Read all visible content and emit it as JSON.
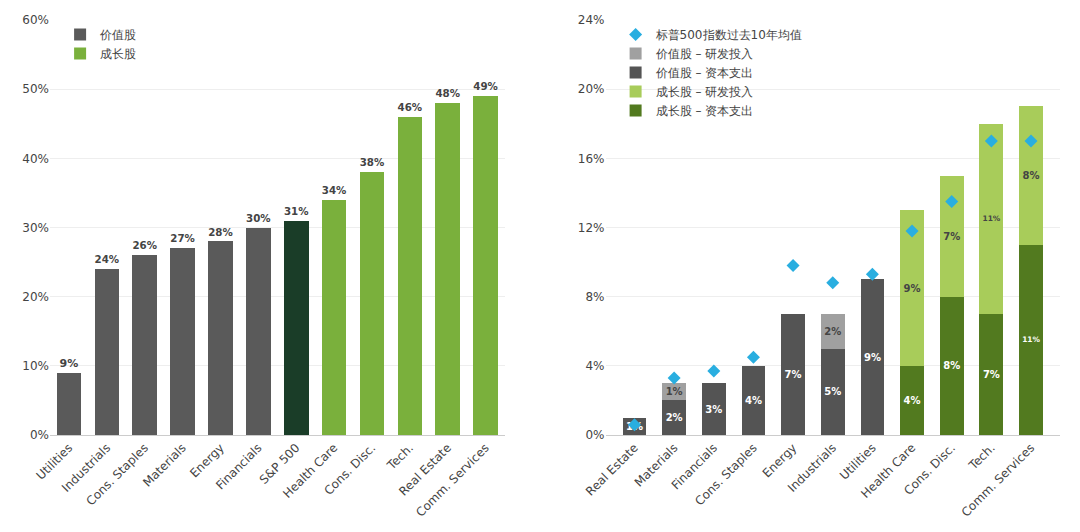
{
  "chart_data": [
    {
      "type": "bar",
      "categories": [
        "Utilities",
        "Industrials",
        "Cons. Staples",
        "Materials",
        "Energy",
        "Financials",
        "S&P 500",
        "Health Care",
        "Cons. Disc.",
        "Tech.",
        "Real Estate",
        "Comm. Services"
      ],
      "values": [
        9,
        24,
        26,
        27,
        28,
        30,
        31,
        34,
        38,
        46,
        48,
        49
      ],
      "value_labels": [
        "9%",
        "24%",
        "26%",
        "27%",
        "28%",
        "30%",
        "31%",
        "34%",
        "38%",
        "46%",
        "48%",
        "49%"
      ],
      "colors": [
        "#5a5a5a",
        "#5a5a5a",
        "#5a5a5a",
        "#5a5a5a",
        "#5a5a5a",
        "#5a5a5a",
        "#1a3d28",
        "#7ab03c",
        "#7ab03c",
        "#7ab03c",
        "#7ab03c",
        "#7ab03c"
      ],
      "legend_entries": [
        {
          "name": "成长股",
          "color": "#7ab03c"
        },
        {
          "name": "价值股",
          "color": "#5a5a5a"
        }
      ],
      "ylim": [
        0,
        60
      ],
      "yticks": [
        {
          "value": 0,
          "label": "0%"
        },
        {
          "value": 10,
          "label": "10%"
        },
        {
          "value": 20,
          "label": "20%"
        },
        {
          "value": 30,
          "label": "30%"
        },
        {
          "value": 40,
          "label": "40%"
        },
        {
          "value": 50,
          "label": "50%"
        },
        {
          "value": 60,
          "label": "60%"
        }
      ],
      "grid": true,
      "data_labels": true,
      "legend": "upper left"
    },
    {
      "type": "bar",
      "stacked": true,
      "categories": [
        "Real Estate",
        "Materials",
        "Financials",
        "Cons. Staples",
        "Energy",
        "Industrials",
        "Utilities",
        "Health Care",
        "Cons. Disc.",
        "Tech.",
        "Comm. Services"
      ],
      "series": [
        {
          "name": "成长股 – 资本支出",
          "color": "#527a1f",
          "values": [
            0,
            0,
            0,
            0,
            0,
            0,
            0,
            4,
            8,
            7,
            11
          ],
          "value_labels": [
            null,
            null,
            null,
            null,
            null,
            null,
            null,
            "4%",
            "8%",
            "7%",
            "11%"
          ]
        },
        {
          "name": "成长股 – 研发投入",
          "color": "#a8cc5a",
          "values": [
            0,
            0,
            0,
            0,
            0,
            0,
            0,
            9,
            7,
            11,
            8
          ],
          "value_labels": [
            null,
            null,
            null,
            null,
            null,
            null,
            null,
            "9%",
            "7%",
            "11%",
            "8%"
          ]
        },
        {
          "name": "价值股 – 资本支出",
          "color": "#545454",
          "values": [
            1,
            2,
            3,
            4,
            7,
            5,
            9,
            0,
            0,
            0,
            0
          ],
          "value_labels": [
            "1%",
            "2%",
            "3%",
            "4%",
            "7%",
            "5%",
            "9%",
            null,
            null,
            null,
            null
          ]
        },
        {
          "name": "价值股 – 研发投入",
          "color": "#a0a0a0",
          "values": [
            0,
            1,
            0,
            0,
            0,
            2,
            0,
            0,
            0,
            0,
            0
          ],
          "value_labels": [
            null,
            "1%",
            null,
            null,
            null,
            "2%",
            null,
            null,
            null,
            null,
            null
          ]
        },
        {
          "name": "标普500指数过去10年均值",
          "color": "#29aee0",
          "type": "scatter",
          "marker": "diamond",
          "values": [
            0.6,
            3.3,
            3.7,
            4.5,
            9.8,
            8.8,
            9.3,
            11.8,
            13.5,
            17.0,
            17.0
          ]
        }
      ],
      "ylim": [
        0,
        24
      ],
      "yticks": [
        {
          "value": 0,
          "label": "0%"
        },
        {
          "value": 4,
          "label": "4%"
        },
        {
          "value": 8,
          "label": "8%"
        },
        {
          "value": 12,
          "label": "12%"
        },
        {
          "value": 16,
          "label": "16%"
        },
        {
          "value": 20,
          "label": "20%"
        },
        {
          "value": 24,
          "label": "24%"
        }
      ],
      "grid": true,
      "data_labels": true,
      "legend": "upper left"
    }
  ]
}
